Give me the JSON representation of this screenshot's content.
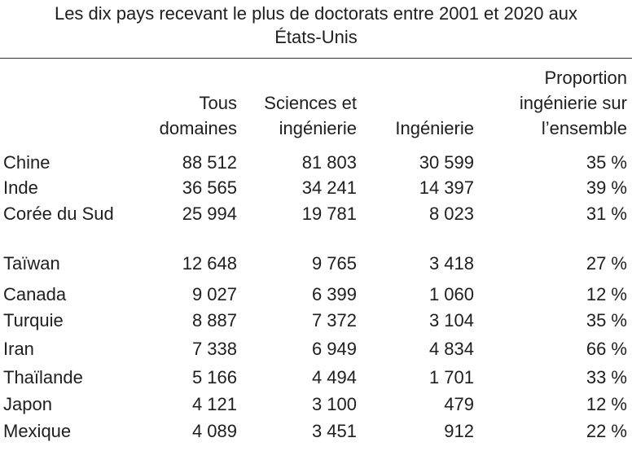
{
  "title": "Les dix pays recevant le plus de doctorats entre 2001 et 2020 aux États-Unis",
  "table": {
    "header": [
      "",
      "Tous domaines",
      "Sciences et ingénierie",
      "Ingénierie",
      "Proportion ingénierie sur l’ensemble"
    ],
    "rows": [
      [
        "Chine",
        "88 512",
        "81 803",
        "30 599",
        "35 %"
      ],
      [
        "Inde",
        "36 565",
        "34 241",
        "14 397",
        "39 %"
      ],
      [
        "Corée du Sud",
        "25 994",
        "19 781",
        "8 023",
        "31 %"
      ],
      [
        "Taïwan",
        "12 648",
        "9 765",
        "3 418",
        "27 %"
      ],
      [
        "Canada",
        "9 027",
        "6 399",
        "1 060",
        "12 %"
      ],
      [
        "Turquie",
        "8 887",
        "7 372",
        "3 104",
        "35 %"
      ],
      [
        "Iran",
        "7 338",
        "6 949",
        "4 834",
        "66 %"
      ],
      [
        "Thaïlande",
        "5 166",
        "4 494",
        "1 701",
        "33 %"
      ],
      [
        "Japon",
        "4 121",
        "3 100",
        "479",
        "12 %"
      ],
      [
        "Mexique",
        "4 089",
        "3 451",
        "912",
        "22 %"
      ]
    ]
  }
}
